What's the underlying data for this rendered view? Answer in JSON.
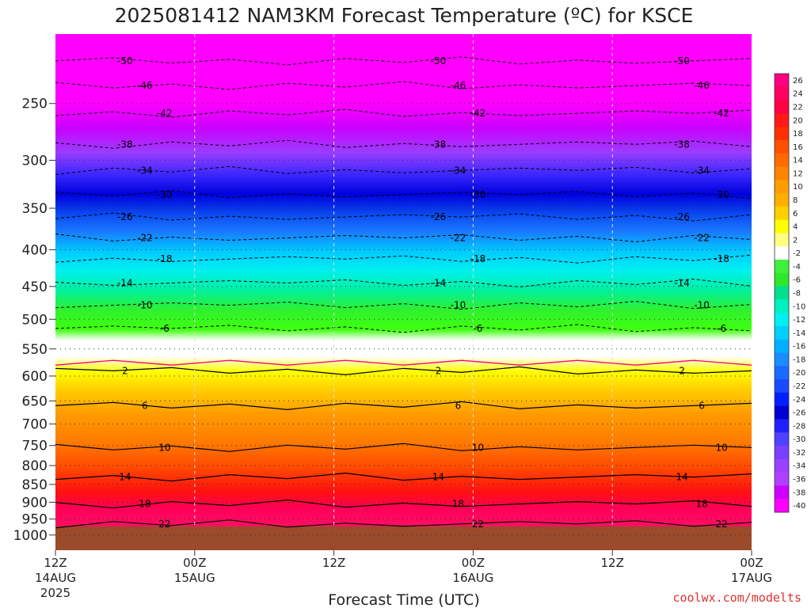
{
  "title": "2025081412 NAM3KM Forecast Temperature (ºC) for KSCE",
  "watermark": "coolwx.com/modelts",
  "chart_data": {
    "type": "heatmap",
    "title": "2025081412 NAM3KM Forecast Temperature (ºC) for KSCE",
    "xlabel": "Forecast Time (UTC)",
    "ylabel": "",
    "y_axis_type": "log-pressure",
    "y_ticks": [
      250,
      300,
      350,
      400,
      450,
      500,
      550,
      600,
      650,
      700,
      750,
      800,
      850,
      900,
      950,
      1000
    ],
    "x_ticks": [
      {
        "hour": 0,
        "line1": "12Z",
        "line2": "14AUG",
        "line3": "2025"
      },
      {
        "hour": 12,
        "line1": "00Z",
        "line2": "15AUG",
        "line3": ""
      },
      {
        "hour": 24,
        "line1": "12Z",
        "line2": "",
        "line3": ""
      },
      {
        "hour": 36,
        "line1": "00Z",
        "line2": "16AUG",
        "line3": ""
      },
      {
        "hour": 48,
        "line1": "12Z",
        "line2": "",
        "line3": ""
      },
      {
        "hour": 60,
        "line1": "00Z",
        "line2": "17AUG",
        "line3": ""
      }
    ],
    "colorbar_labels": [
      26,
      24,
      22,
      20,
      18,
      16,
      14,
      12,
      10,
      8,
      6,
      4,
      2,
      -2,
      -4,
      -6,
      -8,
      -10,
      -12,
      -14,
      -16,
      -18,
      -20,
      -22,
      -24,
      -26,
      -28,
      -30,
      -32,
      -34,
      -36,
      -38,
      -40
    ],
    "isotherm_labels": [
      -50,
      -46,
      -42,
      -38,
      -34,
      -30,
      -26,
      -22,
      -18,
      -14,
      -10,
      -6,
      2,
      6,
      10,
      14,
      18,
      22
    ]
  }
}
